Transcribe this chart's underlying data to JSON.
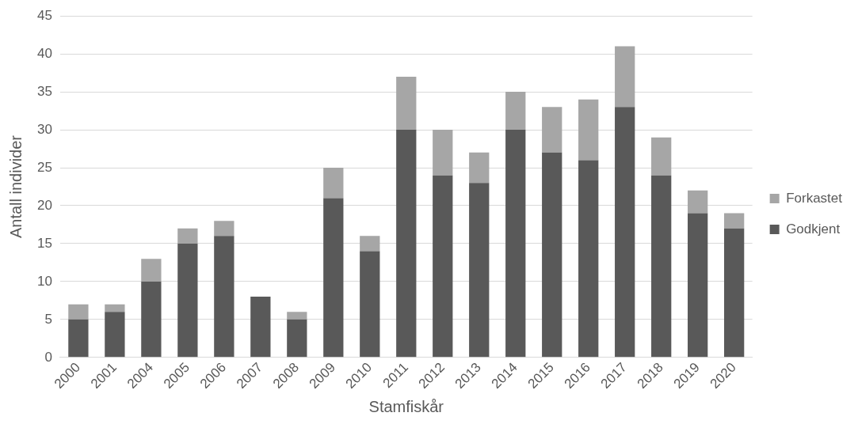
{
  "chart_data": {
    "type": "bar",
    "stacked": true,
    "xlabel": "Stamfiskår",
    "ylabel": "Antall individer",
    "categories": [
      "2000",
      "2001",
      "2004",
      "2005",
      "2006",
      "2007",
      "2008",
      "2009",
      "2010",
      "2011",
      "2012",
      "2013",
      "2014",
      "2015",
      "2016",
      "2017",
      "2018",
      "2019",
      "2020"
    ],
    "series": [
      {
        "name": "Godkjent",
        "color": "#595959",
        "values": [
          5,
          6,
          10,
          15,
          16,
          8,
          5,
          21,
          14,
          30,
          24,
          23,
          30,
          27,
          26,
          33,
          24,
          19,
          17
        ]
      },
      {
        "name": "Forkastet",
        "color": "#a6a6a6",
        "values": [
          2,
          1,
          3,
          2,
          2,
          0,
          1,
          4,
          2,
          7,
          6,
          4,
          5,
          6,
          8,
          8,
          5,
          3,
          2
        ]
      }
    ],
    "ylim": [
      0,
      45
    ],
    "yticks": [
      0,
      5,
      10,
      15,
      20,
      25,
      30,
      35,
      40,
      45
    ],
    "grid": "y",
    "legend": "right"
  }
}
